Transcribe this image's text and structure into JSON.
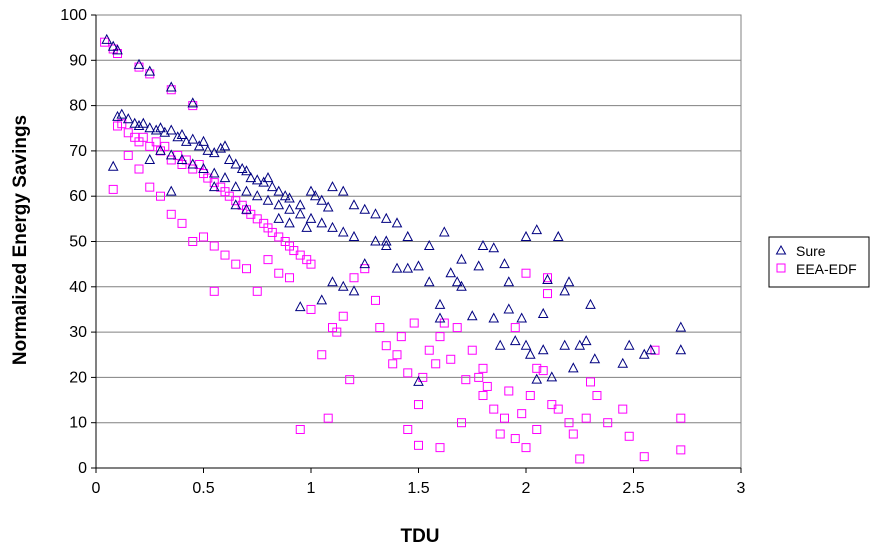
{
  "chart_data": {
    "type": "scatter",
    "xlabel": "TDU",
    "ylabel": "Normalized Energy Savings",
    "xlim": [
      0,
      3
    ],
    "ylim": [
      0,
      100
    ],
    "xticks": [
      0,
      0.5,
      1,
      1.5,
      2,
      2.5,
      3
    ],
    "yticks": [
      0,
      10,
      20,
      30,
      40,
      50,
      60,
      70,
      80,
      90,
      100
    ],
    "grid": "horizontal",
    "legend_position": "right",
    "series": [
      {
        "name": "Sure",
        "marker": "triangle",
        "color": "#000080",
        "points": [
          [
            0.05,
            94.5
          ],
          [
            0.08,
            93
          ],
          [
            0.1,
            92.2
          ],
          [
            0.2,
            89
          ],
          [
            0.25,
            87.5
          ],
          [
            0.35,
            84
          ],
          [
            0.45,
            80.5
          ],
          [
            0.1,
            77.5
          ],
          [
            0.12,
            78
          ],
          [
            0.15,
            77
          ],
          [
            0.18,
            76
          ],
          [
            0.2,
            75.5
          ],
          [
            0.22,
            76
          ],
          [
            0.25,
            75
          ],
          [
            0.28,
            74.5
          ],
          [
            0.3,
            75
          ],
          [
            0.32,
            74
          ],
          [
            0.35,
            74.5
          ],
          [
            0.38,
            73
          ],
          [
            0.4,
            73.5
          ],
          [
            0.42,
            72
          ],
          [
            0.45,
            72.5
          ],
          [
            0.48,
            71
          ],
          [
            0.5,
            72
          ],
          [
            0.52,
            70
          ],
          [
            0.55,
            69.5
          ],
          [
            0.58,
            70.5
          ],
          [
            0.6,
            71
          ],
          [
            0.62,
            68
          ],
          [
            0.65,
            67
          ],
          [
            0.68,
            66
          ],
          [
            0.7,
            65.5
          ],
          [
            0.72,
            64
          ],
          [
            0.75,
            63.5
          ],
          [
            0.78,
            63
          ],
          [
            0.8,
            64
          ],
          [
            0.82,
            62
          ],
          [
            0.85,
            61
          ],
          [
            0.88,
            60
          ],
          [
            0.9,
            59.5
          ],
          [
            0.95,
            58
          ],
          [
            1.0,
            61
          ],
          [
            1.02,
            60
          ],
          [
            1.05,
            59
          ],
          [
            1.08,
            57.5
          ],
          [
            1.1,
            62
          ],
          [
            1.15,
            61
          ],
          [
            1.2,
            58
          ],
          [
            1.25,
            57
          ],
          [
            1.3,
            56
          ],
          [
            1.35,
            55
          ],
          [
            1.4,
            54
          ],
          [
            0.3,
            70
          ],
          [
            0.35,
            69
          ],
          [
            0.4,
            68
          ],
          [
            0.45,
            67
          ],
          [
            0.5,
            66
          ],
          [
            0.55,
            65
          ],
          [
            0.6,
            64
          ],
          [
            0.65,
            62
          ],
          [
            0.7,
            61
          ],
          [
            0.75,
            60
          ],
          [
            0.8,
            59
          ],
          [
            0.85,
            58
          ],
          [
            0.9,
            57
          ],
          [
            0.95,
            56
          ],
          [
            1.0,
            55
          ],
          [
            1.05,
            54
          ],
          [
            1.1,
            53
          ],
          [
            1.15,
            52
          ],
          [
            1.2,
            51
          ],
          [
            0.08,
            66.5
          ],
          [
            0.35,
            61
          ],
          [
            0.25,
            68
          ],
          [
            0.55,
            62
          ],
          [
            0.65,
            58
          ],
          [
            0.7,
            57
          ],
          [
            0.85,
            55
          ],
          [
            0.9,
            54
          ],
          [
            0.98,
            53
          ],
          [
            0.95,
            35.5
          ],
          [
            1.05,
            37
          ],
          [
            1.1,
            41
          ],
          [
            1.15,
            40
          ],
          [
            1.2,
            39
          ],
          [
            1.25,
            45
          ],
          [
            1.3,
            50
          ],
          [
            1.35,
            49
          ],
          [
            1.4,
            44
          ],
          [
            1.45,
            44
          ],
          [
            1.5,
            44.5
          ],
          [
            1.5,
            19
          ],
          [
            1.55,
            41
          ],
          [
            1.6,
            36
          ],
          [
            1.6,
            33
          ],
          [
            1.65,
            43
          ],
          [
            1.68,
            41
          ],
          [
            1.7,
            40
          ],
          [
            1.75,
            33.5
          ],
          [
            1.8,
            49
          ],
          [
            1.85,
            48.5
          ],
          [
            1.85,
            33
          ],
          [
            1.88,
            27
          ],
          [
            1.9,
            45
          ],
          [
            1.92,
            41
          ],
          [
            1.95,
            28
          ],
          [
            2.0,
            51
          ],
          [
            2.0,
            27
          ],
          [
            2.02,
            25
          ],
          [
            2.05,
            52.5
          ],
          [
            2.05,
            19.5
          ],
          [
            2.08,
            26
          ],
          [
            2.1,
            41.5
          ],
          [
            2.12,
            20
          ],
          [
            2.15,
            51
          ],
          [
            2.18,
            27
          ],
          [
            2.2,
            41
          ],
          [
            2.22,
            22
          ],
          [
            2.25,
            27
          ],
          [
            2.28,
            28
          ],
          [
            2.3,
            36
          ],
          [
            2.32,
            24
          ],
          [
            2.45,
            23
          ],
          [
            2.48,
            27
          ],
          [
            2.55,
            25
          ],
          [
            2.58,
            26
          ],
          [
            2.72,
            31
          ],
          [
            2.72,
            26
          ],
          [
            1.35,
            50
          ],
          [
            1.45,
            51
          ],
          [
            1.55,
            49
          ],
          [
            1.62,
            52
          ],
          [
            1.7,
            46
          ],
          [
            1.78,
            44.5
          ],
          [
            1.92,
            35
          ],
          [
            1.98,
            33
          ],
          [
            2.08,
            34
          ],
          [
            2.18,
            39
          ]
        ]
      },
      {
        "name": "EEA-EDF",
        "marker": "square",
        "color": "#ff00ff",
        "points": [
          [
            0.04,
            94
          ],
          [
            0.08,
            92.5
          ],
          [
            0.1,
            91.5
          ],
          [
            0.2,
            88.5
          ],
          [
            0.25,
            87
          ],
          [
            0.35,
            83.5
          ],
          [
            0.45,
            80
          ],
          [
            0.1,
            75.5
          ],
          [
            0.12,
            76
          ],
          [
            0.15,
            74
          ],
          [
            0.18,
            73
          ],
          [
            0.2,
            72
          ],
          [
            0.22,
            73
          ],
          [
            0.25,
            71
          ],
          [
            0.28,
            72
          ],
          [
            0.3,
            70
          ],
          [
            0.32,
            71
          ],
          [
            0.35,
            68
          ],
          [
            0.38,
            69
          ],
          [
            0.4,
            67
          ],
          [
            0.42,
            68
          ],
          [
            0.45,
            66
          ],
          [
            0.48,
            67
          ],
          [
            0.5,
            65
          ],
          [
            0.52,
            64
          ],
          [
            0.55,
            63
          ],
          [
            0.58,
            62
          ],
          [
            0.6,
            61
          ],
          [
            0.62,
            60
          ],
          [
            0.65,
            59
          ],
          [
            0.68,
            58
          ],
          [
            0.7,
            57
          ],
          [
            0.72,
            56
          ],
          [
            0.75,
            55
          ],
          [
            0.78,
            54
          ],
          [
            0.8,
            53
          ],
          [
            0.82,
            52
          ],
          [
            0.85,
            51
          ],
          [
            0.88,
            50
          ],
          [
            0.9,
            49
          ],
          [
            0.92,
            48
          ],
          [
            0.95,
            47
          ],
          [
            0.98,
            46
          ],
          [
            1.0,
            45
          ],
          [
            0.08,
            61.5
          ],
          [
            0.15,
            69
          ],
          [
            0.2,
            66
          ],
          [
            0.25,
            62
          ],
          [
            0.3,
            60
          ],
          [
            0.35,
            56
          ],
          [
            0.4,
            54
          ],
          [
            0.45,
            50
          ],
          [
            0.5,
            51
          ],
          [
            0.55,
            49
          ],
          [
            0.6,
            47
          ],
          [
            0.65,
            45
          ],
          [
            0.7,
            44
          ],
          [
            0.75,
            39
          ],
          [
            0.55,
            39
          ],
          [
            0.8,
            46
          ],
          [
            0.85,
            43
          ],
          [
            0.9,
            42
          ],
          [
            0.95,
            8.5
          ],
          [
            1.0,
            35
          ],
          [
            1.05,
            25
          ],
          [
            1.08,
            11
          ],
          [
            1.1,
            31
          ],
          [
            1.12,
            30
          ],
          [
            1.15,
            33.5
          ],
          [
            1.18,
            19.5
          ],
          [
            1.2,
            42
          ],
          [
            1.25,
            44
          ],
          [
            1.3,
            37
          ],
          [
            1.32,
            31
          ],
          [
            1.35,
            27
          ],
          [
            1.38,
            23
          ],
          [
            1.4,
            25
          ],
          [
            1.42,
            29
          ],
          [
            1.45,
            21
          ],
          [
            1.48,
            32
          ],
          [
            1.5,
            14
          ],
          [
            1.52,
            20
          ],
          [
            1.55,
            26
          ],
          [
            1.58,
            23
          ],
          [
            1.6,
            4.5
          ],
          [
            1.62,
            32
          ],
          [
            1.65,
            24
          ],
          [
            1.68,
            31
          ],
          [
            1.72,
            19.5
          ],
          [
            1.75,
            26
          ],
          [
            1.78,
            20
          ],
          [
            1.8,
            16
          ],
          [
            1.82,
            18
          ],
          [
            1.85,
            13
          ],
          [
            1.88,
            7.5
          ],
          [
            1.9,
            11
          ],
          [
            1.92,
            17
          ],
          [
            1.95,
            6.5
          ],
          [
            1.98,
            12
          ],
          [
            2.0,
            4.5
          ],
          [
            2.02,
            16
          ],
          [
            2.05,
            8.5
          ],
          [
            2.08,
            21.5
          ],
          [
            2.1,
            38.5
          ],
          [
            2.12,
            14
          ],
          [
            2.15,
            13
          ],
          [
            2.2,
            10
          ],
          [
            2.22,
            7.5
          ],
          [
            2.25,
            2
          ],
          [
            2.28,
            11
          ],
          [
            2.3,
            19
          ],
          [
            2.33,
            16
          ],
          [
            2.38,
            10
          ],
          [
            2.45,
            13
          ],
          [
            2.48,
            7
          ],
          [
            2.55,
            2.5
          ],
          [
            2.6,
            26
          ],
          [
            2.72,
            11
          ],
          [
            2.72,
            4
          ],
          [
            1.45,
            8.5
          ],
          [
            1.5,
            5
          ],
          [
            1.6,
            29
          ],
          [
            1.7,
            10
          ],
          [
            1.8,
            22
          ],
          [
            1.95,
            31
          ],
          [
            2.0,
            43
          ],
          [
            2.05,
            22
          ],
          [
            2.1,
            42
          ]
        ]
      }
    ]
  },
  "colors": {
    "plot_background": "#ffffff",
    "gridline": "#808080",
    "axis": "#000000"
  }
}
